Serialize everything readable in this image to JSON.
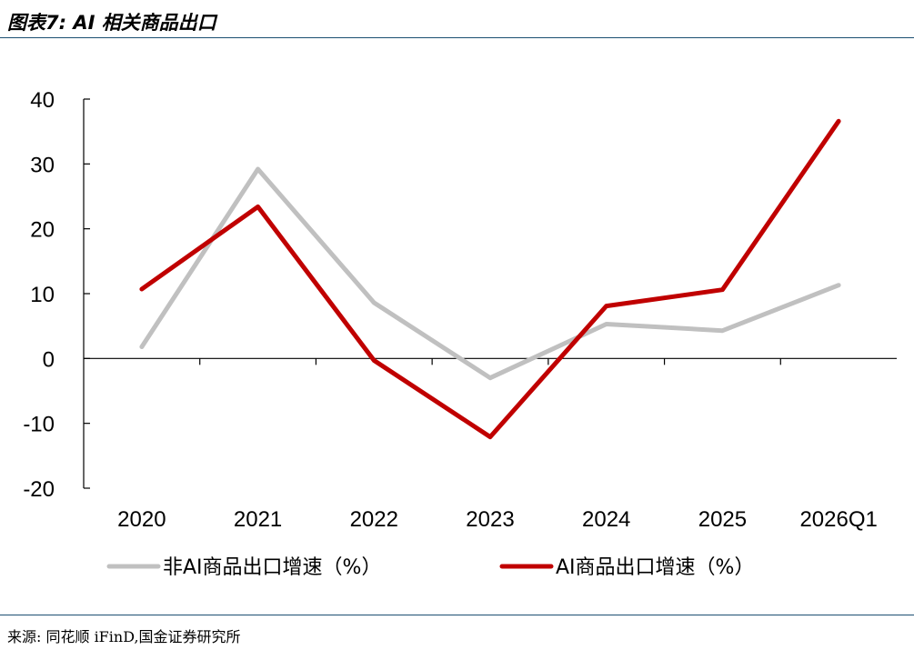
{
  "header": {
    "title": "图表7: AI 相关商品出口"
  },
  "footer": {
    "source": "来源: 同花顺 iFinD,国金证券研究所"
  },
  "chart_data": {
    "type": "line",
    "categories": [
      "2020",
      "2021",
      "2022",
      "2023",
      "2024",
      "2025",
      "2026Q1"
    ],
    "series": [
      {
        "name": "非AI商品出口增速（%）",
        "color": "#c0c0c0",
        "values": [
          1.8,
          29.2,
          8.6,
          -3.0,
          5.3,
          4.3,
          11.3
        ]
      },
      {
        "name": "AI商品出口增速（%）",
        "color": "#c00000",
        "values": [
          10.7,
          23.4,
          -0.3,
          -12.1,
          8.1,
          10.6,
          36.6
        ]
      }
    ],
    "ylim": [
      -20,
      40
    ],
    "yticks": [
      -20,
      -10,
      0,
      10,
      20,
      30,
      40
    ],
    "xlabel": "",
    "ylabel": "",
    "grid": false,
    "legend": "bottom"
  }
}
